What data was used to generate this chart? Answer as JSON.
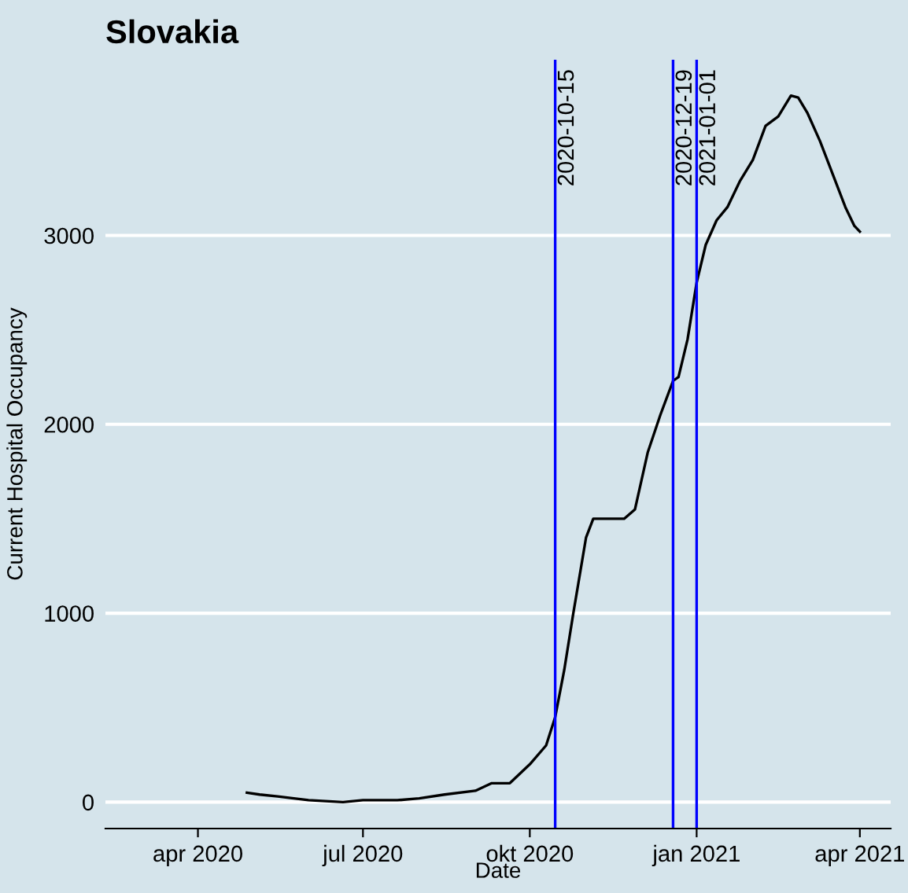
{
  "chart_data": {
    "type": "line",
    "title": "Slovakia",
    "xlabel": "Date",
    "ylabel": "Current Hospital Occupancy",
    "x": [
      "2020-04-28",
      "2020-05-05",
      "2020-05-15",
      "2020-06-01",
      "2020-06-20",
      "2020-07-01",
      "2020-07-20",
      "2020-08-01",
      "2020-08-15",
      "2020-09-01",
      "2020-09-10",
      "2020-09-20",
      "2020-10-01",
      "2020-10-10",
      "2020-10-15",
      "2020-10-20",
      "2020-10-25",
      "2020-11-01",
      "2020-11-05",
      "2020-11-08",
      "2020-11-15",
      "2020-11-22",
      "2020-11-28",
      "2020-12-05",
      "2020-12-12",
      "2020-12-19",
      "2020-12-22",
      "2020-12-27",
      "2021-01-01",
      "2021-01-06",
      "2021-01-12",
      "2021-01-18",
      "2021-01-25",
      "2021-02-01",
      "2021-02-08",
      "2021-02-15",
      "2021-02-22",
      "2021-02-26",
      "2021-03-03",
      "2021-03-10",
      "2021-03-18",
      "2021-03-24",
      "2021-03-29",
      "2021-04-01"
    ],
    "series": [
      {
        "color": "#000000",
        "values": [
          50,
          40,
          30,
          10,
          0,
          10,
          10,
          20,
          40,
          60,
          100,
          100,
          200,
          300,
          450,
          700,
          1000,
          1400,
          1500,
          1500,
          1500,
          1500,
          1550,
          1850,
          2050,
          2230,
          2250,
          2450,
          2750,
          2950,
          3080,
          3150,
          3290,
          3400,
          3580,
          3630,
          3740,
          3730,
          3650,
          3500,
          3300,
          3150,
          3050,
          3020
        ]
      }
    ],
    "xlim": [
      "2020-02-10",
      "2021-04-18"
    ],
    "ylim": [
      -140,
      3930
    ],
    "xticks": [
      {
        "value": "2020-04-01",
        "label": "apr 2020"
      },
      {
        "value": "2020-07-01",
        "label": "jul 2020"
      },
      {
        "value": "2020-10-01",
        "label": "okt 2020"
      },
      {
        "value": "2021-01-01",
        "label": "jan 2021"
      },
      {
        "value": "2021-04-01",
        "label": "apr 2021"
      }
    ],
    "yticks": [
      0,
      1000,
      2000,
      3000
    ],
    "grid": "y",
    "legend": false,
    "marker": "none",
    "line_style": "solid",
    "ref_lines": [
      {
        "axis": "x",
        "value": "2020-10-15",
        "label": "2020-10-15",
        "color": "#0000ff"
      },
      {
        "axis": "x",
        "value": "2020-12-19",
        "label": "2020-12-19",
        "color": "#0000ff"
      },
      {
        "axis": "x",
        "value": "2021-01-01",
        "label": "2021-01-01",
        "color": "#0000ff"
      }
    ]
  }
}
